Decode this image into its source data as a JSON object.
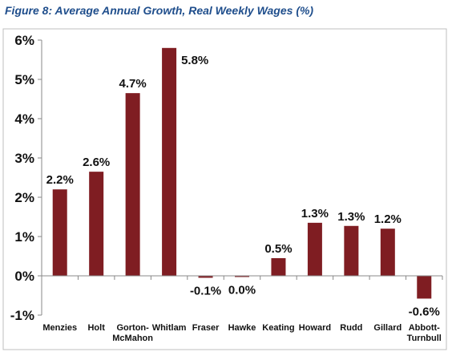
{
  "figure": {
    "title": "Figure 8: Average Annual Growth, Real Weekly Wages (%)"
  },
  "chart_data": {
    "type": "bar",
    "title": "Figure 8: Average Annual Growth, Real Weekly Wages (%)",
    "xlabel": "",
    "ylabel": "",
    "categories": [
      [
        "Menzies"
      ],
      [
        "Holt"
      ],
      [
        "Gorton-",
        "McMahon"
      ],
      [
        "Whitlam"
      ],
      [
        "Fraser"
      ],
      [
        "Hawke"
      ],
      [
        "Keating"
      ],
      [
        "Howard"
      ],
      [
        "Rudd"
      ],
      [
        "Gillard"
      ],
      [
        "Abbott-",
        "Turnbull"
      ]
    ],
    "values": [
      2.2,
      2.65,
      4.65,
      5.8,
      -0.05,
      -0.03,
      0.45,
      1.35,
      1.27,
      1.2,
      -0.58
    ],
    "data_labels": [
      "2.2%",
      "2.6%",
      "4.7%",
      "5.8%",
      "-0.1%",
      "0.0%",
      "0.5%",
      "1.3%",
      "1.3%",
      "1.2%",
      "-0.6%"
    ],
    "ylim": [
      -1,
      6
    ],
    "yticks": [
      -1,
      0,
      1,
      2,
      3,
      4,
      5,
      6
    ],
    "ytick_labels": [
      "-1%",
      "0%",
      "1%",
      "2%",
      "3%",
      "4%",
      "5%",
      "6%"
    ],
    "grid": false,
    "legend": "none",
    "colors": {
      "bar": "#7f1d22",
      "axis": "#888888",
      "frame": "#bfbfbf",
      "title": "#1f4e8c"
    }
  }
}
